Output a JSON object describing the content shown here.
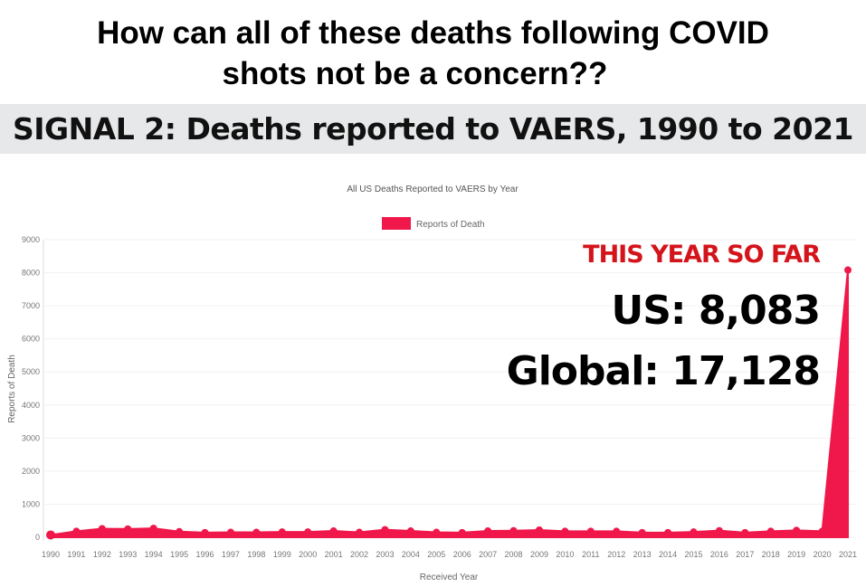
{
  "headline": {
    "line1": "How can all of these deaths following COVID",
    "line2": "shots not be a concern??"
  },
  "banner": "SIGNAL 2: Deaths reported to VAERS, 1990 to 2021",
  "annotation": {
    "label": "THIS YEAR SO FAR",
    "us": "US: 8,083",
    "global": "Global: 17,128",
    "label_color": "#d4141b"
  },
  "chart_data": {
    "type": "area",
    "title": "All US Deaths Reported to VAERS by Year",
    "xlabel": "Received Year",
    "ylabel": "Reports of Death",
    "ylim": [
      0,
      9000
    ],
    "yticks": [
      0,
      1000,
      2000,
      3000,
      4000,
      5000,
      6000,
      7000,
      8000,
      9000
    ],
    "grid": true,
    "legend": "top",
    "color": "#f0174a",
    "categories": [
      "1990",
      "1991",
      "1992",
      "1993",
      "1994",
      "1995",
      "1996",
      "1997",
      "1998",
      "1999",
      "2000",
      "2001",
      "2002",
      "2003",
      "2004",
      "2005",
      "2006",
      "2007",
      "2008",
      "2009",
      "2010",
      "2011",
      "2012",
      "2013",
      "2014",
      "2015",
      "2016",
      "2017",
      "2018",
      "2019",
      "2020",
      "2021"
    ],
    "series": [
      {
        "name": "Reports of Death",
        "values": [
          70,
          180,
          260,
          250,
          270,
          170,
          140,
          150,
          150,
          160,
          160,
          190,
          150,
          230,
          190,
          150,
          140,
          190,
          200,
          220,
          180,
          180,
          180,
          140,
          140,
          160,
          200,
          140,
          180,
          210,
          180,
          8083
        ]
      }
    ]
  }
}
